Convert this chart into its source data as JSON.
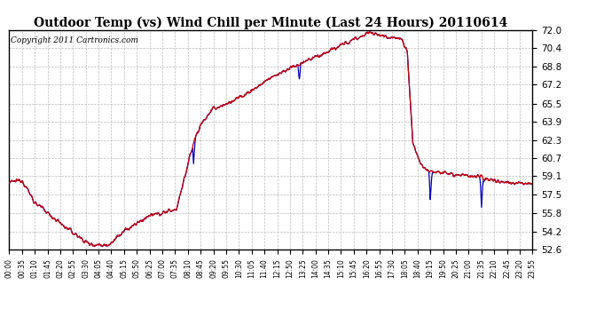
{
  "title": "Outdoor Temp (vs) Wind Chill per Minute (Last 24 Hours) 20110614",
  "copyright": "Copyright 2011 Cartronics.com",
  "ymin": 52.6,
  "ymax": 72.0,
  "yticks": [
    52.6,
    54.2,
    55.8,
    57.5,
    59.1,
    60.7,
    62.3,
    63.9,
    65.5,
    67.2,
    68.8,
    70.4,
    72.0
  ],
  "xtick_labels": [
    "00:00",
    "00:35",
    "01:10",
    "01:45",
    "02:20",
    "02:55",
    "03:30",
    "04:05",
    "04:40",
    "05:15",
    "05:50",
    "06:25",
    "07:00",
    "07:35",
    "08:10",
    "08:45",
    "09:20",
    "09:55",
    "10:30",
    "11:05",
    "11:40",
    "12:15",
    "12:50",
    "13:25",
    "14:00",
    "14:35",
    "15:10",
    "15:45",
    "16:20",
    "16:55",
    "17:30",
    "18:05",
    "18:40",
    "19:15",
    "19:50",
    "20:25",
    "21:00",
    "21:35",
    "22:10",
    "22:45",
    "23:20",
    "23:55"
  ],
  "bg_color": "#ffffff",
  "line_color_red": "#cc0000",
  "line_color_blue": "#0000bb",
  "grid_color": "#bbbbbb",
  "title_fontsize": 11,
  "copyright_fontsize": 7,
  "n_points": 1440
}
